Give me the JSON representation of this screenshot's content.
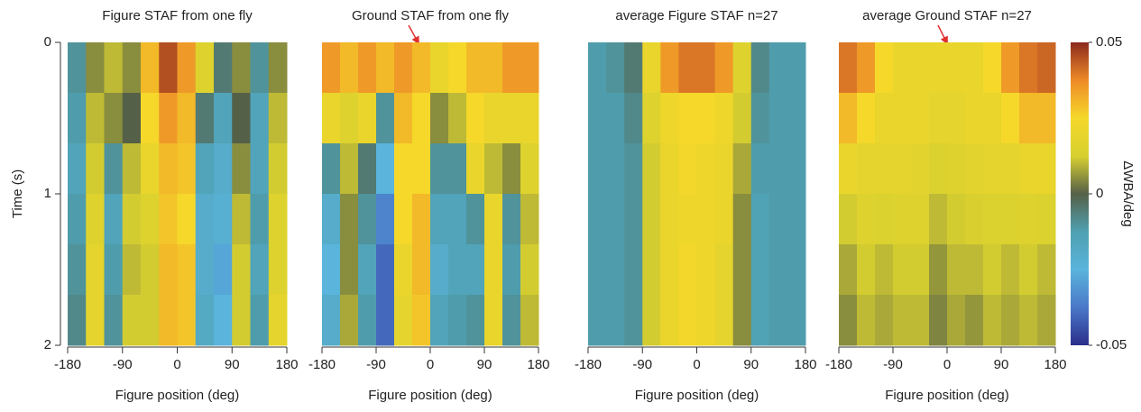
{
  "chart_data": [
    {
      "type": "heatmap",
      "title": "Figure STAF from one fly",
      "xlabel": "Figure position (deg)",
      "ylabel": "Time (s)",
      "xlim": [
        -180,
        180
      ],
      "xticks": [
        -180,
        -90,
        0,
        90,
        180
      ],
      "ylim": [
        0,
        2
      ],
      "yticks": [
        0,
        1,
        2
      ],
      "values": [
        [
          -0.01,
          0.005,
          0.01,
          0.005,
          0.03,
          0.045,
          0.035,
          0.015,
          -0.005,
          0.005,
          -0.01,
          0.005
        ],
        [
          -0.012,
          0.01,
          0.005,
          0,
          0.025,
          0.035,
          0.03,
          -0.005,
          -0.015,
          0,
          -0.015,
          0.01
        ],
        [
          -0.015,
          0.012,
          -0.01,
          0.01,
          0.02,
          0.03,
          0.028,
          -0.015,
          -0.02,
          0.005,
          -0.015,
          0.012
        ],
        [
          -0.012,
          0.015,
          -0.015,
          0.012,
          0.015,
          0.028,
          0.025,
          -0.02,
          -0.022,
          0.01,
          -0.012,
          0.015
        ],
        [
          -0.01,
          0.018,
          -0.012,
          0.01,
          0.012,
          0.03,
          0.028,
          -0.02,
          -0.028,
          0.012,
          -0.015,
          0.015
        ],
        [
          -0.008,
          0.018,
          -0.01,
          0.012,
          0.012,
          0.03,
          0.028,
          -0.018,
          -0.025,
          0.012,
          -0.012,
          0.018
        ]
      ]
    },
    {
      "type": "heatmap",
      "title": "Ground STAF from one fly",
      "xlabel": "Figure position (deg)",
      "xlim": [
        -180,
        180
      ],
      "xticks": [
        -180,
        -90,
        0,
        90,
        180
      ],
      "ylim": [
        0,
        2
      ],
      "values": [
        [
          0.035,
          0.03,
          0.035,
          0.03,
          0.035,
          0.03,
          0.02,
          0.025,
          0.03,
          0.03,
          0.035,
          0.035
        ],
        [
          0.02,
          0.015,
          0.02,
          -0.01,
          0.03,
          0.025,
          0.005,
          0.01,
          0.025,
          0.02,
          0.02,
          0.02
        ],
        [
          -0.01,
          0.01,
          -0.005,
          -0.025,
          0.025,
          0.025,
          -0.01,
          -0.01,
          0.02,
          0.01,
          0.005,
          0.015
        ],
        [
          -0.02,
          0.005,
          -0.01,
          -0.035,
          0.025,
          0.03,
          -0.015,
          -0.015,
          -0.01,
          0.02,
          -0.01,
          0.01
        ],
        [
          -0.025,
          0.005,
          -0.015,
          -0.04,
          0.02,
          0.03,
          -0.02,
          -0.015,
          -0.015,
          0.02,
          -0.012,
          0.012
        ],
        [
          -0.02,
          0.008,
          -0.012,
          -0.04,
          0.018,
          0.028,
          -0.015,
          -0.012,
          -0.01,
          0.02,
          -0.01,
          0.01
        ]
      ]
    },
    {
      "type": "heatmap",
      "title": "average Figure STAF n=27",
      "xlabel": "Figure position (deg)",
      "xlim": [
        -180,
        180
      ],
      "xticks": [
        -180,
        -90,
        0,
        90,
        180
      ],
      "ylim": [
        0,
        2
      ],
      "values": [
        [
          -0.012,
          -0.01,
          -0.005,
          0.02,
          0.035,
          0.04,
          0.04,
          0.035,
          0.015,
          -0.008,
          -0.012,
          -0.012
        ],
        [
          -0.012,
          -0.012,
          -0.008,
          0.015,
          0.022,
          0.025,
          0.025,
          0.022,
          0.012,
          -0.01,
          -0.012,
          -0.012
        ],
        [
          -0.012,
          -0.012,
          -0.01,
          0.012,
          0.02,
          0.024,
          0.022,
          0.02,
          0.008,
          -0.012,
          -0.012,
          -0.012
        ],
        [
          -0.012,
          -0.012,
          -0.01,
          0.012,
          0.02,
          0.022,
          0.022,
          0.02,
          0.005,
          -0.014,
          -0.012,
          -0.012
        ],
        [
          -0.012,
          -0.012,
          -0.01,
          0.012,
          0.02,
          0.024,
          0.022,
          0.018,
          0.005,
          -0.014,
          -0.012,
          -0.012
        ],
        [
          -0.012,
          -0.012,
          -0.01,
          0.012,
          0.02,
          0.024,
          0.022,
          0.018,
          0.005,
          -0.014,
          -0.012,
          -0.012
        ]
      ]
    },
    {
      "type": "heatmap",
      "title": "average Ground STAF n=27",
      "xlabel": "Figure position (deg)",
      "xlim": [
        -180,
        180
      ],
      "xticks": [
        -180,
        -90,
        0,
        90,
        180
      ],
      "ylim": [
        0,
        2
      ],
      "values": [
        [
          0.04,
          0.035,
          0.025,
          0.02,
          0.02,
          0.02,
          0.02,
          0.02,
          0.025,
          0.035,
          0.04,
          0.042
        ],
        [
          0.03,
          0.025,
          0.02,
          0.02,
          0.02,
          0.018,
          0.018,
          0.02,
          0.02,
          0.025,
          0.03,
          0.03
        ],
        [
          0.02,
          0.018,
          0.018,
          0.018,
          0.017,
          0.014,
          0.015,
          0.017,
          0.018,
          0.018,
          0.02,
          0.02
        ],
        [
          0.012,
          0.015,
          0.014,
          0.015,
          0.015,
          0.01,
          0.012,
          0.013,
          0.014,
          0.014,
          0.015,
          0.014
        ],
        [
          0.008,
          0.012,
          0.01,
          0.012,
          0.012,
          0.006,
          0.01,
          0.01,
          0.012,
          0.01,
          0.012,
          0.01
        ],
        [
          0.005,
          0.01,
          0.008,
          0.01,
          0.01,
          0.004,
          0.008,
          0.006,
          0.01,
          0.008,
          0.01,
          0.008
        ]
      ]
    }
  ],
  "colorbar": {
    "label": "ΔWBA/deg",
    "lim": [
      -0.05,
      0.05
    ],
    "ticks": [
      -0.05,
      0,
      0.05
    ],
    "colormap": [
      "#2b2f8c",
      "#4a78c8",
      "#5ab4dc",
      "#4fa0b0",
      "#556048",
      "#d8d030",
      "#f5d82a",
      "#ee8a28",
      "#8c2a1c"
    ]
  }
}
